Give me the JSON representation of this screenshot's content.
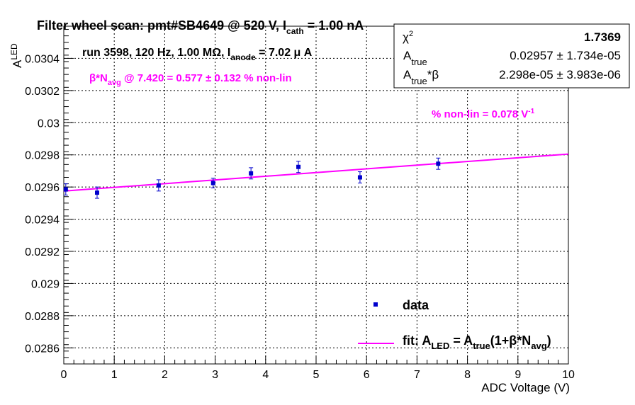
{
  "chart_data": {
    "type": "scatter",
    "title": {
      "prefix": "Filter wheel scan: pmt#SB4649 @   520 V, I",
      "sub": "cath",
      "suffix": " = 1.00 nA"
    },
    "run_info": {
      "prefix": "run 3598, 120 Hz, 1.00 MΩ, I",
      "sub": "anode",
      "suffix": " = 7.02 μ A"
    },
    "annotation_beta": {
      "prefix": "β*N",
      "sub": "avg",
      "suffix": " @ 7.420 = 0.577 ± 0.132 % non-lin"
    },
    "annotation_nonlin": {
      "text": "% non-lin = 0.078 V",
      "sup": "-1"
    },
    "xlabel": "ADC Voltage (V)",
    "ylabel": {
      "main": "A",
      "sub": "LED"
    },
    "xlim": [
      0,
      10
    ],
    "ylim": [
      0.0285,
      0.0306
    ],
    "x_ticks": [
      "0",
      "1",
      "2",
      "3",
      "4",
      "5",
      "6",
      "7",
      "8",
      "9",
      "10"
    ],
    "y_ticks": [
      "0.0286",
      "0.0288",
      "0.029",
      "0.0292",
      "0.0294",
      "0.0296",
      "0.0298",
      "0.03",
      "0.0302",
      "0.0304"
    ],
    "series": [
      {
        "name": "data",
        "color": "#0000cc",
        "points": [
          {
            "x": 0.04,
            "y": 0.029585,
            "err": 3.5e-05
          },
          {
            "x": 0.66,
            "y": 0.029565,
            "err": 3.5e-05
          },
          {
            "x": 1.88,
            "y": 0.02961,
            "err": 3.5e-05
          },
          {
            "x": 2.96,
            "y": 0.029625,
            "err": 3e-05
          },
          {
            "x": 3.71,
            "y": 0.029685,
            "err": 3.5e-05
          },
          {
            "x": 4.65,
            "y": 0.029725,
            "err": 3.5e-05
          },
          {
            "x": 5.87,
            "y": 0.02966,
            "err": 3.5e-05
          },
          {
            "x": 7.42,
            "y": 0.029745,
            "err": 3.5e-05
          }
        ]
      },
      {
        "name": "fit",
        "color": "#ff00ff",
        "type": "line",
        "x": [
          0,
          10
        ],
        "y": [
          0.029575,
          0.029805
        ]
      }
    ],
    "legend": {
      "placement": "bottom-right",
      "data_label": "data",
      "fit_label": {
        "p1": "fit: A",
        "s1": "LED",
        "p2": " = A",
        "s2": "true",
        "p3": "(1+β*N",
        "s3": "avg",
        "p4": ")"
      }
    },
    "stats_box": {
      "chi2": {
        "label": "χ",
        "sup": "2",
        "value": "1.7369"
      },
      "a_true": {
        "label": "A",
        "sub": "true",
        "value": "0.02957 ± 1.734e-05"
      },
      "a_true_beta": {
        "label": "A",
        "sub": "true",
        "suffix": "*β",
        "value": "2.298e-05 ± 3.983e-06"
      }
    },
    "grid": true
  }
}
